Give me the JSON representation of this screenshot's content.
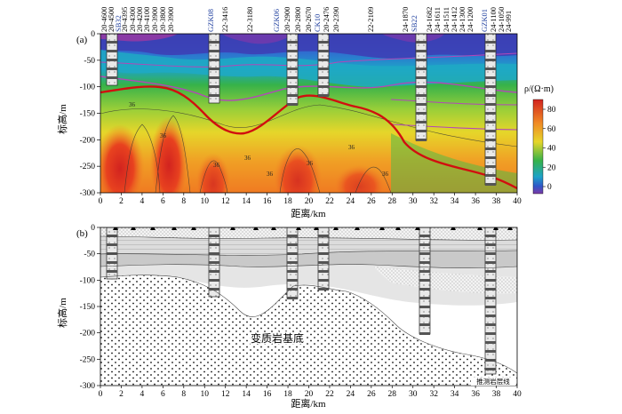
{
  "figure": {
    "panel_a": {
      "label": "(a)",
      "ylabel": "标高/m",
      "xlabel": "距离/km",
      "y_ticks": [
        "0",
        "-50",
        "-100",
        "-150",
        "-200",
        "-250",
        "-300"
      ],
      "x_ticks": [
        "0",
        "2",
        "4",
        "6",
        "8",
        "10",
        "12",
        "14",
        "16",
        "18",
        "20",
        "22",
        "24",
        "26",
        "28",
        "30",
        "32",
        "34",
        "36",
        "38",
        "40"
      ],
      "colorbar_title": "ρ/(Ω·m)",
      "colorbar_ticks": [
        "80",
        "60",
        "40",
        "20",
        "0"
      ],
      "contour_label": "36",
      "colors": {
        "low": "#7d3aa6",
        "mid_low": "#2f56c8",
        "mid": "#1da3c8",
        "green": "#36b24a",
        "yellow": "#e6d62a",
        "orange": "#f08a25",
        "high": "#d2231f",
        "interface_line": "#cc0000",
        "purple_line": "#b347b8"
      },
      "well_labels": [
        {
          "text": "20-4600",
          "color": "black"
        },
        {
          "text": "20-4500",
          "color": "black"
        },
        {
          "text": "SB32",
          "color": "blue"
        },
        {
          "text": "20-4395",
          "color": "black"
        },
        {
          "text": "20-4300",
          "color": "black"
        },
        {
          "text": "20-4200",
          "color": "black"
        },
        {
          "text": "20-4100",
          "color": "black"
        },
        {
          "text": "20-3900",
          "color": "black"
        },
        {
          "text": "20-3800",
          "color": "black"
        },
        {
          "text": "20-3900",
          "color": "black"
        },
        {
          "text": "GZK08",
          "color": "blue"
        },
        {
          "text": "22-3416",
          "color": "black"
        },
        {
          "text": "22-3180",
          "color": "black"
        },
        {
          "text": "GZK06",
          "color": "blue"
        },
        {
          "text": "20-2900",
          "color": "black"
        },
        {
          "text": "20-2800",
          "color": "black"
        },
        {
          "text": "20-2670",
          "color": "black"
        },
        {
          "text": "CK10",
          "color": "blue"
        },
        {
          "text": "20-2476",
          "color": "black"
        },
        {
          "text": "20-2390",
          "color": "black"
        },
        {
          "text": "22-2109",
          "color": "black"
        },
        {
          "text": "24-1870",
          "color": "black"
        },
        {
          "text": "SB22",
          "color": "blue"
        },
        {
          "text": "24-1682",
          "color": "black"
        },
        {
          "text": "24-1611",
          "color": "black"
        },
        {
          "text": "24-1511",
          "color": "black"
        },
        {
          "text": "24-1412",
          "color": "black"
        },
        {
          "text": "24-1300",
          "color": "black"
        },
        {
          "text": "24-1200",
          "color": "black"
        },
        {
          "text": "GZK01",
          "color": "blue"
        },
        {
          "text": "24-1100",
          "color": "black"
        },
        {
          "text": "24-1050",
          "color": "black"
        },
        {
          "text": "24-991",
          "color": "black"
        }
      ]
    },
    "panel_b": {
      "label": "(b)",
      "ylabel": "标高/m",
      "xlabel": "距离/km",
      "y_ticks": [
        "0",
        "-50",
        "-100",
        "-150",
        "-200",
        "-250",
        "-300"
      ],
      "x_ticks": [
        "0",
        "2",
        "4",
        "6",
        "8",
        "10",
        "12",
        "14",
        "16",
        "18",
        "20",
        "22",
        "24",
        "26",
        "28",
        "30",
        "32",
        "34",
        "36",
        "38",
        "40"
      ],
      "basement_label": "变质岩基底",
      "corner_label": "推测岩层线"
    }
  }
}
